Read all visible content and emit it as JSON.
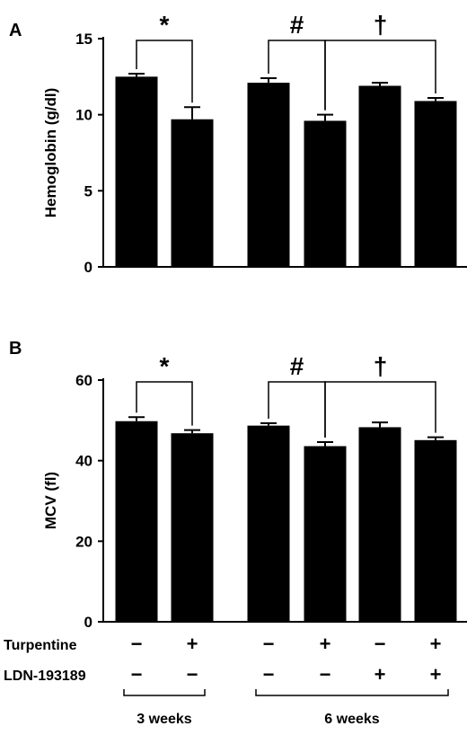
{
  "chart_data": [
    {
      "panel_label": "A",
      "type": "bar",
      "ylabel": "Hemoglobin (g/dl)",
      "ylim": [
        0,
        15
      ],
      "yticks": [
        "0",
        "5",
        "10",
        "15"
      ],
      "values": [
        12.5,
        9.7,
        12.1,
        9.6,
        11.9,
        10.9
      ],
      "errors": [
        0.2,
        0.8,
        0.3,
        0.4,
        0.2,
        0.2
      ],
      "brackets": [
        {
          "symbol": "*",
          "from": 0,
          "to": 1
        },
        {
          "symbol": "#",
          "from": 2,
          "to": 3
        },
        {
          "symbol": "†",
          "from": 3,
          "to": 5
        }
      ]
    },
    {
      "panel_label": "B",
      "type": "bar",
      "ylabel": "MCV (fl)",
      "ylim": [
        0,
        60
      ],
      "yticks": [
        "0",
        "20",
        "40",
        "60"
      ],
      "values": [
        49.8,
        46.8,
        48.7,
        43.6,
        48.3,
        45.1
      ],
      "errors": [
        1.0,
        0.8,
        0.6,
        1.0,
        1.2,
        0.7
      ],
      "brackets": [
        {
          "symbol": "*",
          "from": 0,
          "to": 1
        },
        {
          "symbol": "#",
          "from": 2,
          "to": 3
        },
        {
          "symbol": "†",
          "from": 3,
          "to": 5
        }
      ]
    }
  ],
  "treatments": {
    "rows": [
      {
        "label": "Turpentine",
        "values": [
          "−",
          "+",
          "−",
          "+",
          "−",
          "+"
        ]
      },
      {
        "label": "LDN-193189",
        "values": [
          "−",
          "−",
          "−",
          "−",
          "+",
          "+"
        ]
      }
    ],
    "groups": [
      {
        "label": "3 weeks",
        "from": 0,
        "to": 1
      },
      {
        "label": "6 weeks",
        "from": 2,
        "to": 5
      }
    ]
  }
}
